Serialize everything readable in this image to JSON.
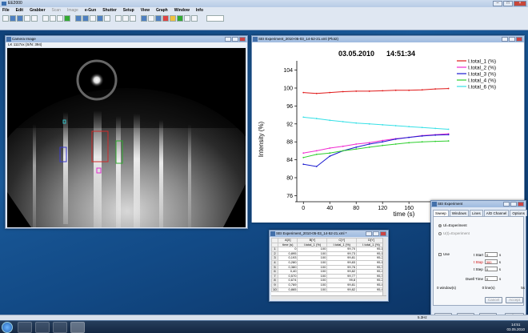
{
  "app": {
    "title": "EE2000",
    "menu": [
      "File",
      "Edit",
      "Grabber",
      "Scan",
      "Image",
      "e-Gun",
      "Shutter",
      "Setup",
      "View",
      "Graph",
      "Window",
      "Info"
    ],
    "menu_disabled": [
      "Scan",
      "Image"
    ]
  },
  "camera": {
    "title": "Camera Image",
    "subtitle": "LK 1117xx (S/N: 394)"
  },
  "plot": {
    "window_title": "SEI Experiment_2010-05-03_14-52-21.xml (Plot2)"
  },
  "chart_data": {
    "type": "line",
    "title": "03.05.2010      14:51:34",
    "xlabel": "time (s)",
    "ylabel": "Intensity (%)",
    "xlim": [
      -10,
      235
    ],
    "ylim": [
      75,
      105
    ],
    "xticks": [
      0,
      40,
      80,
      120,
      160
    ],
    "yticks": [
      76,
      80,
      84,
      88,
      92,
      96,
      100,
      104
    ],
    "legend_position": "top-right",
    "series": [
      {
        "name": "I.total_1 (%)",
        "color": "#e01818",
        "x": [
          0,
          20,
          40,
          60,
          80,
          100,
          120,
          140,
          160,
          180,
          200,
          220
        ],
        "y": [
          99.0,
          98.8,
          99.0,
          99.2,
          99.3,
          99.3,
          99.4,
          99.5,
          99.5,
          99.6,
          99.8,
          99.9
        ]
      },
      {
        "name": "I.total_2 (%)",
        "color": "#f02ad0",
        "x": [
          0,
          20,
          40,
          60,
          80,
          100,
          120,
          140,
          160,
          180,
          200,
          220
        ],
        "y": [
          85.5,
          86.0,
          86.6,
          87.0,
          87.5,
          87.8,
          88.3,
          88.7,
          89.0,
          89.4,
          89.6,
          89.8
        ]
      },
      {
        "name": "I.total_3 (%)",
        "color": "#1b1bd0",
        "x": [
          0,
          20,
          40,
          60,
          80,
          100,
          120,
          140,
          160,
          180,
          200,
          220
        ],
        "y": [
          83.0,
          82.5,
          84.8,
          86.0,
          86.8,
          87.5,
          88.0,
          88.6,
          89.0,
          89.3,
          89.5,
          89.6
        ]
      },
      {
        "name": "I.total_4 (%)",
        "color": "#2ecf2e",
        "x": [
          0,
          20,
          40,
          60,
          80,
          100,
          120,
          140,
          160,
          180,
          200,
          220
        ],
        "y": [
          84.5,
          85.2,
          85.5,
          86.0,
          86.4,
          86.8,
          87.2,
          87.5,
          87.8,
          88.0,
          88.1,
          88.2
        ]
      },
      {
        "name": "I.total_6 (%)",
        "color": "#36e0e6",
        "x": [
          0,
          20,
          40,
          60,
          80,
          100,
          120,
          140,
          160,
          180,
          200,
          220
        ],
        "y": [
          93.5,
          93.2,
          92.8,
          92.5,
          92.2,
          92.0,
          91.8,
          91.6,
          91.4,
          91.2,
          91.0,
          90.8
        ]
      }
    ]
  },
  "table": {
    "window_title": "SEI Experiment_2010-05-03_14-52-21.xml *",
    "headers": [
      [
        "",
        "A[X]",
        "B[Y]",
        "C[Y]",
        "D[Y]"
      ],
      [
        "",
        "time (s)",
        "I.total_1 (%)",
        "I.total_1 (%)",
        "I.total_1 (%)"
      ]
    ],
    "rows": [
      [
        "1",
        "0",
        "100",
        "99,70",
        "95,15"
      ],
      [
        "2",
        "0,895",
        "100",
        "99,73",
        "95,15"
      ],
      [
        "3",
        "0,193",
        "100",
        "99,81",
        "95,21"
      ],
      [
        "4",
        "0,280",
        "100",
        "99,83",
        "95,16"
      ],
      [
        "5",
        "0,380",
        "100",
        "99,76",
        "95,34"
      ],
      [
        "6",
        "0,40",
        "100",
        "99,82",
        "95,42"
      ],
      [
        "7",
        "0,570",
        "100",
        "99,77",
        "95,34"
      ],
      [
        "8",
        "0,674",
        "100",
        "99,8",
        "95,28"
      ],
      [
        "9",
        "0,769",
        "100",
        "99,81",
        "95,46"
      ],
      [
        "10",
        "0,865",
        "100",
        "99,82",
        "95,41"
      ]
    ]
  },
  "experiment": {
    "title": "SEI Experiment",
    "tabs": [
      "Sweep",
      "Windows",
      "Lines",
      "A/D Channel",
      "Options"
    ],
    "radio_1": "Ul=Experiment",
    "radio_2": "U(t)=Experiment",
    "use_label": "Use",
    "t_start_label": "t Start",
    "t_start_value": "0",
    "t_stop_label": "t Stop",
    "t_stop_value": "300",
    "t_step_label": "t Step",
    "t_step_value": "0",
    "unit": "s",
    "dwell_label": "Dwell Time",
    "dwell_value": "0",
    "status_left": "0 window(s)",
    "status_mid": "0 line(s)",
    "status_right": "5s",
    "cancel": "Cancel",
    "accept": "Accept",
    "new": "New",
    "start": "Start",
    "stop": "Stop",
    "close": "Close"
  },
  "statusbar": {
    "right_text": "5.3Hz"
  },
  "taskbar": {
    "time": "14:51",
    "date": "03.05.2010"
  }
}
